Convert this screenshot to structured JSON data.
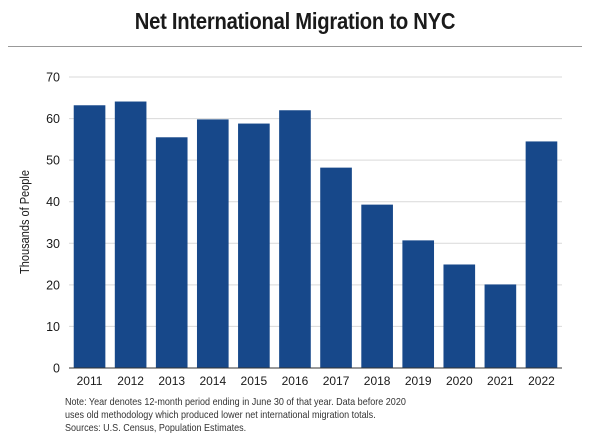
{
  "chart_data": {
    "type": "bar",
    "title": "Net International Migration to NYC",
    "xlabel": "",
    "ylabel": "Thousands of People",
    "categories": [
      "2011",
      "2012",
      "2013",
      "2014",
      "2015",
      "2016",
      "2017",
      "2018",
      "2019",
      "2020",
      "2021",
      "2022"
    ],
    "values": [
      63.2,
      64.1,
      55.5,
      59.8,
      58.8,
      62.0,
      48.2,
      39.3,
      30.7,
      24.9,
      20.1,
      54.5
    ],
    "ylim": [
      0,
      70
    ],
    "yticks": [
      0,
      10,
      20,
      30,
      40,
      50,
      60,
      70
    ],
    "grid": true,
    "bar_color": "#17488a",
    "notes": [
      "Note: Year denotes 12-month period ending in June 30 of that year. Data before 2020",
      "uses old methodology which produced lower net international migration totals.",
      "Sources: U.S. Census, Population Estimates."
    ]
  }
}
